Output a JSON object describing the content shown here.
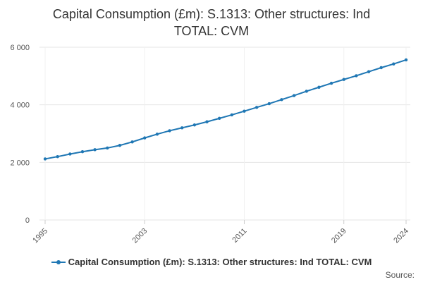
{
  "chart_data": {
    "type": "line",
    "title_lines": [
      "Capital Consumption (£m): S.1313: Other structures: Ind",
      "TOTAL: CVM"
    ],
    "x_tick_labels": [
      "1995",
      "2003",
      "2011",
      "2019",
      "2024"
    ],
    "x": [
      1995,
      1996,
      1997,
      1998,
      1999,
      2000,
      2001,
      2002,
      2003,
      2004,
      2005,
      2006,
      2007,
      2008,
      2009,
      2010,
      2011,
      2012,
      2013,
      2014,
      2015,
      2016,
      2017,
      2018,
      2019,
      2020,
      2021,
      2022,
      2023,
      2024
    ],
    "series": [
      {
        "name": "Capital Consumption (£m): S.1313: Other structures: Ind TOTAL: CVM",
        "color": "#1f77b4",
        "values": [
          2120,
          2200,
          2290,
          2370,
          2440,
          2500,
          2590,
          2710,
          2850,
          2980,
          3100,
          3200,
          3300,
          3410,
          3530,
          3650,
          3780,
          3910,
          4040,
          4180,
          4320,
          4470,
          4610,
          4750,
          4880,
          5010,
          5150,
          5290,
          5420,
          5560
        ]
      }
    ],
    "ylim": [
      0,
      6000
    ],
    "y_ticks": [
      0,
      2000,
      4000,
      6000
    ],
    "y_tick_labels": [
      "0",
      "2 000",
      "4 000",
      "6 000"
    ],
    "xlim": [
      1995,
      2024
    ],
    "xlabel": "",
    "ylabel": "",
    "grid": "horizontal"
  },
  "legend": {
    "label": "Capital Consumption (£m): S.1313: Other structures: Ind TOTAL: CVM"
  },
  "source_label": "Source:"
}
